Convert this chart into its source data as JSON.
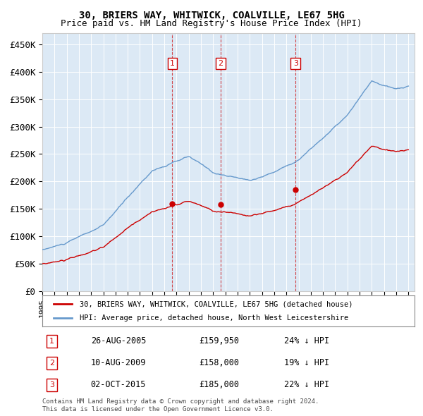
{
  "title": "30, BRIERS WAY, WHITWICK, COALVILLE, LE67 5HG",
  "subtitle": "Price paid vs. HM Land Registry's House Price Index (HPI)",
  "y_label_format": "£{0}K",
  "yticks": [
    0,
    50000,
    100000,
    150000,
    200000,
    250000,
    300000,
    350000,
    400000,
    450000
  ],
  "ytick_labels": [
    "£0",
    "£50K",
    "£100K",
    "£150K",
    "£200K",
    "£250K",
    "£300K",
    "£350K",
    "£400K",
    "£450K"
  ],
  "xlim_start": 1995.0,
  "xlim_end": 2025.5,
  "ylim_min": 0,
  "ylim_max": 470000,
  "bg_color": "#dce9f5",
  "plot_bg_color": "#dce9f5",
  "line_color_property": "#cc0000",
  "line_color_hpi": "#6699cc",
  "transaction_markers": [
    {
      "year": 2005.65,
      "price": 159950,
      "label": "1"
    },
    {
      "year": 2009.61,
      "price": 158000,
      "label": "2"
    },
    {
      "year": 2015.75,
      "price": 185000,
      "label": "3"
    }
  ],
  "legend_property": "30, BRIERS WAY, WHITWICK, COALVILLE, LE67 5HG (detached house)",
  "legend_hpi": "HPI: Average price, detached house, North West Leicestershire",
  "table_rows": [
    {
      "num": "1",
      "date": "26-AUG-2005",
      "price": "£159,950",
      "pct": "24% ↓ HPI"
    },
    {
      "num": "2",
      "date": "10-AUG-2009",
      "price": "£158,000",
      "pct": "19% ↓ HPI"
    },
    {
      "num": "3",
      "date": "02-OCT-2015",
      "price": "£185,000",
      "pct": "22% ↓ HPI"
    }
  ],
  "footnote1": "Contains HM Land Registry data © Crown copyright and database right 2024.",
  "footnote2": "This data is licensed under the Open Government Licence v3.0."
}
